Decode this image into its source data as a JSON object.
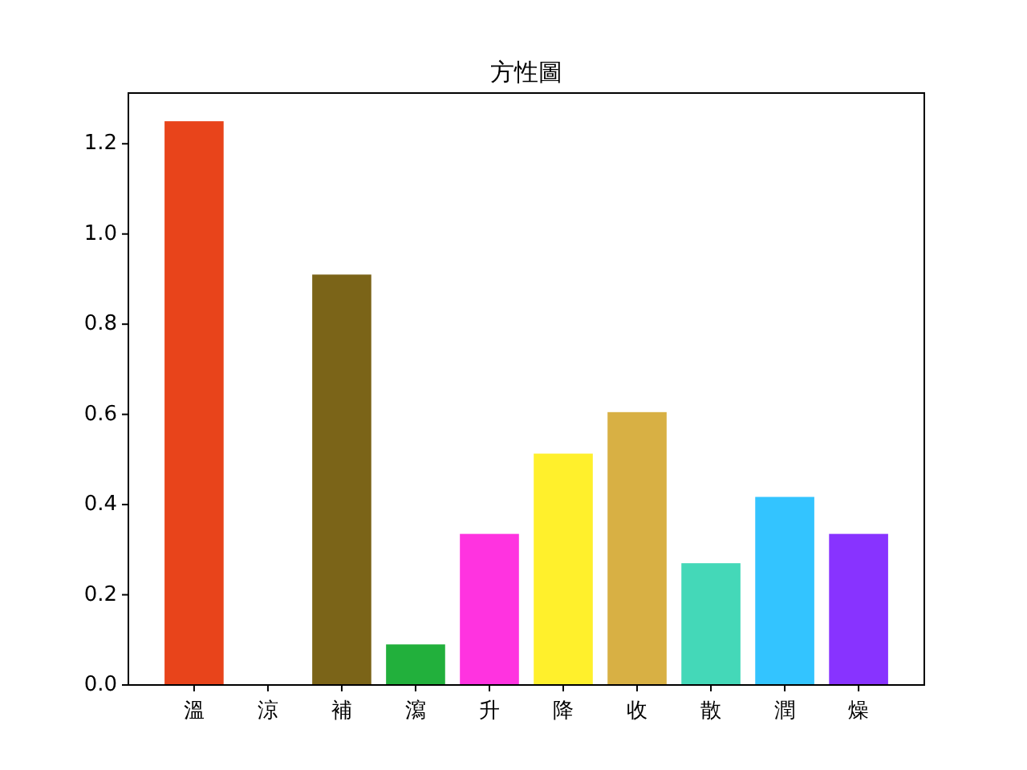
{
  "chart_data": {
    "type": "bar",
    "title": "方性圖",
    "categories": [
      "溫",
      "涼",
      "補",
      "瀉",
      "升",
      "降",
      "收",
      "散",
      "潤",
      "燥"
    ],
    "values": [
      1.25,
      0,
      0.91,
      0.09,
      0.335,
      0.513,
      0.605,
      0.27,
      0.417,
      0.335
    ],
    "colors": [
      "#e8441b",
      "#1f3fbf",
      "#7b6418",
      "#22b03c",
      "#ff33e0",
      "#fff02c",
      "#d8b044",
      "#44d8b8",
      "#33c4ff",
      "#8833ff"
    ],
    "ylim": [
      0,
      1.3125
    ],
    "yticks": [
      {
        "value": 0,
        "label": "0.0"
      },
      {
        "value": 0.2,
        "label": "0.2"
      },
      {
        "value": 0.4,
        "label": "0.4"
      },
      {
        "value": 0.6,
        "label": "0.6"
      },
      {
        "value": 0.8,
        "label": "0.8"
      },
      {
        "value": 1.0,
        "label": "1.0"
      },
      {
        "value": 1.2,
        "label": "1.2"
      }
    ]
  }
}
